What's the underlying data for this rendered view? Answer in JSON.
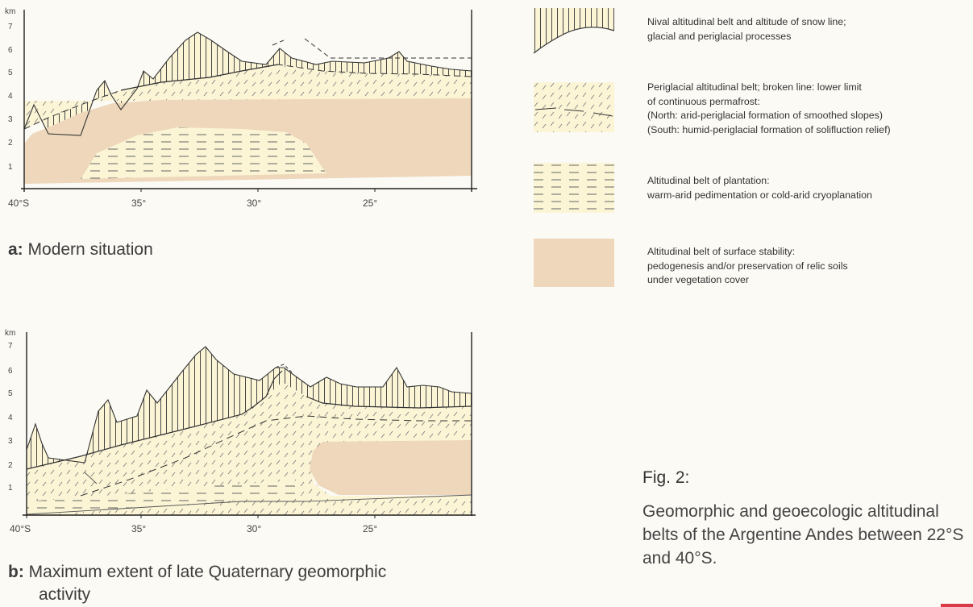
{
  "panel_a": {
    "y_unit": "km",
    "y_ticks": [
      "7",
      "6",
      "5",
      "4",
      "3",
      "2",
      "1"
    ],
    "x_ticks": [
      "40°S",
      "35°",
      "30°",
      "25°"
    ],
    "caption_prefix": "a:",
    "caption_text": "Modern situation"
  },
  "panel_b": {
    "y_unit": "km",
    "y_ticks": [
      "7",
      "6",
      "5",
      "4",
      "3",
      "2",
      "1"
    ],
    "x_ticks": [
      "40°S",
      "35°",
      "30°",
      "25°"
    ],
    "caption_prefix": "b:",
    "caption_line1": "Maximum extent of late Quaternary geomorphic",
    "caption_line2": "activity"
  },
  "legend": {
    "nival": [
      "Nival altitudinal belt and altitude of snow line;",
      "glacial and periglacial processes"
    ],
    "periglacial": [
      "Periglacial altitudinal belt; broken line: lower limit",
      "of continuous permafrost:",
      "(North: arid-periglacial formation of smoothed slopes)",
      "(South: humid-periglacial formation of solifluction relief)"
    ],
    "plantation": [
      "Altitudinal belt of plantation:",
      "warm-arid pedimentation or cold-arid cryoplanation"
    ],
    "stability": [
      "Altitudinal belt of surface stability:",
      "pedogenesis and/or preservation of relic soils",
      "under vegetation cover"
    ]
  },
  "figure": {
    "title": "Fig. 2:",
    "description": "Geomorphic and geoecologic altitudinal belts of the Argentine Andes between 22°S and 40°S."
  },
  "colors": {
    "background": "#fbfaf5",
    "cream": "#fbf5d6",
    "tan": "#eed7ba",
    "line": "#333333"
  }
}
